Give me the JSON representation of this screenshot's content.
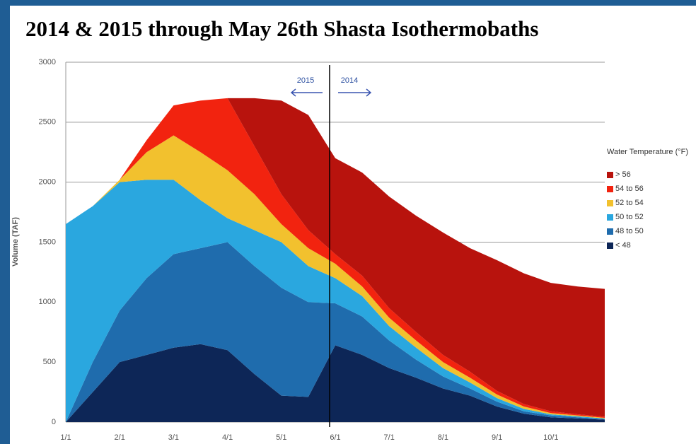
{
  "chart_data": {
    "type": "stacked_area",
    "title": "2014 & 2015 through May 26th Shasta Isothermobaths",
    "y_label": "Volume (TAF)",
    "legend_title": "Water Temperature (°F)",
    "legend": "right",
    "grid": true,
    "annotations": [
      "2015",
      "2014"
    ],
    "categories": [
      "1/1",
      null,
      "2/1",
      null,
      "3/1",
      null,
      "4/1",
      null,
      "5/1",
      null,
      "6/1",
      null,
      "7/1",
      null,
      "8/1",
      null,
      "9/1",
      null,
      "10/1",
      null,
      null
    ],
    "ylim": [
      0,
      3000
    ],
    "yticks": [
      0,
      500,
      1000,
      1500,
      2000,
      2500,
      3000
    ],
    "series": [
      {
        "name": "< 48",
        "color": "#0d2657",
        "values": [
          0,
          250,
          500,
          560,
          620,
          650,
          600,
          400,
          220,
          210,
          640,
          560,
          450,
          370,
          280,
          220,
          130,
          70,
          40,
          30,
          20
        ]
      },
      {
        "name": "48 to 50",
        "color": "#1f6cad",
        "values": [
          0,
          250,
          430,
          640,
          780,
          800,
          900,
          900,
          900,
          790,
          350,
          320,
          230,
          150,
          100,
          60,
          40,
          20,
          15,
          10,
          5
        ]
      },
      {
        "name": "50 to 52",
        "color": "#2aa7df",
        "values": [
          1650,
          1300,
          1070,
          820,
          620,
          400,
          200,
          300,
          380,
          300,
          210,
          170,
          120,
          100,
          70,
          50,
          30,
          20,
          10,
          8,
          5
        ]
      },
      {
        "name": "52 to 54",
        "color": "#f2c12e",
        "values": [
          0,
          0,
          20,
          230,
          370,
          400,
          400,
          300,
          150,
          150,
          120,
          80,
          70,
          60,
          50,
          40,
          30,
          20,
          10,
          7,
          5
        ]
      },
      {
        "name": "54 to 56",
        "color": "#f2230f",
        "values": [
          0,
          0,
          0,
          100,
          250,
          430,
          600,
          400,
          250,
          150,
          80,
          90,
          80,
          70,
          60,
          50,
          30,
          20,
          15,
          10,
          10
        ]
      },
      {
        "name": "> 56",
        "color": "#b8130d",
        "values": [
          0,
          0,
          0,
          0,
          0,
          0,
          0,
          400,
          780,
          960,
          800,
          860,
          930,
          970,
          1020,
          1030,
          1090,
          1090,
          1070,
          1065,
          1065
        ]
      }
    ]
  }
}
